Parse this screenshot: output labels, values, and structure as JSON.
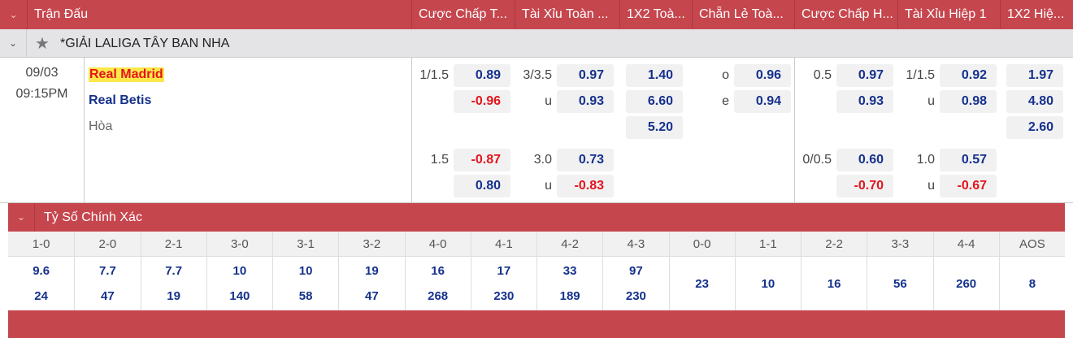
{
  "header": {
    "columns": [
      "Trận Đấu",
      "Cược Chấp T...",
      "Tài Xỉu Toàn ...",
      "1X2 Toà...",
      "Chẵn Lẻ Toà...",
      "Cược Chấp H...",
      "Tài Xỉu Hiệp 1",
      "1X2 Hiệ..."
    ]
  },
  "league": {
    "name": "*GIẢI LALIGA TÂY BAN NHA",
    "icon": "star-icon"
  },
  "match": {
    "date": "09/03",
    "time": "09:15PM",
    "home": "Real Madrid",
    "away": "Real Betis",
    "draw": "Hòa"
  },
  "odds": [
    {
      "col": "handicap_ft",
      "label": "1/1.5",
      "value": "0.89",
      "row": 0
    },
    {
      "col": "handicap_ft",
      "label": "",
      "value": "-0.96",
      "row": 1
    },
    {
      "col": "handicap_ft",
      "label": "1.5",
      "value": "-0.87",
      "row": 3
    },
    {
      "col": "handicap_ft",
      "label": "",
      "value": "0.80",
      "row": 4
    },
    {
      "col": "ou_ft",
      "label": "3/3.5",
      "value": "0.97",
      "row": 0
    },
    {
      "col": "ou_ft",
      "label": "u",
      "value": "0.93",
      "row": 1
    },
    {
      "col": "ou_ft",
      "label": "3.0",
      "value": "0.73",
      "row": 3
    },
    {
      "col": "ou_ft",
      "label": "u",
      "value": "-0.83",
      "row": 4
    },
    {
      "col": "1x2_ft",
      "label": "",
      "value": "1.40",
      "row": 0
    },
    {
      "col": "1x2_ft",
      "label": "",
      "value": "6.60",
      "row": 1
    },
    {
      "col": "1x2_ft",
      "label": "",
      "value": "5.20",
      "row": 2
    },
    {
      "col": "oe_ft",
      "label": "o",
      "value": "0.96",
      "row": 0
    },
    {
      "col": "oe_ft",
      "label": "e",
      "value": "0.94",
      "row": 1
    },
    {
      "col": "handicap_h1",
      "label": "0.5",
      "value": "0.97",
      "row": 0
    },
    {
      "col": "handicap_h1",
      "label": "",
      "value": "0.93",
      "row": 1
    },
    {
      "col": "handicap_h1",
      "label": "0/0.5",
      "value": "0.60",
      "row": 3
    },
    {
      "col": "handicap_h1",
      "label": "",
      "value": "-0.70",
      "row": 4
    },
    {
      "col": "ou_h1",
      "label": "1/1.5",
      "value": "0.92",
      "row": 0
    },
    {
      "col": "ou_h1",
      "label": "u",
      "value": "0.98",
      "row": 1
    },
    {
      "col": "ou_h1",
      "label": "1.0",
      "value": "0.57",
      "row": 3
    },
    {
      "col": "ou_h1",
      "label": "u",
      "value": "-0.67",
      "row": 4
    },
    {
      "col": "1x2_h1",
      "label": "",
      "value": "1.97",
      "row": 0
    },
    {
      "col": "1x2_h1",
      "label": "",
      "value": "4.80",
      "row": 1
    },
    {
      "col": "1x2_h1",
      "label": "",
      "value": "2.60",
      "row": 2
    }
  ],
  "correct_score": {
    "title": "Tỷ Số Chính Xác",
    "columns": [
      {
        "score": "1-0",
        "values": [
          "9.6",
          "24"
        ]
      },
      {
        "score": "2-0",
        "values": [
          "7.7",
          "47"
        ]
      },
      {
        "score": "2-1",
        "values": [
          "7.7",
          "19"
        ]
      },
      {
        "score": "3-0",
        "values": [
          "10",
          "140"
        ]
      },
      {
        "score": "3-1",
        "values": [
          "10",
          "58"
        ]
      },
      {
        "score": "3-2",
        "values": [
          "19",
          "47"
        ]
      },
      {
        "score": "4-0",
        "values": [
          "16",
          "268"
        ]
      },
      {
        "score": "4-1",
        "values": [
          "17",
          "230"
        ]
      },
      {
        "score": "4-2",
        "values": [
          "33",
          "189"
        ]
      },
      {
        "score": "4-3",
        "values": [
          "97",
          "230"
        ]
      },
      {
        "score": "0-0",
        "values": [
          "23"
        ]
      },
      {
        "score": "1-1",
        "values": [
          "10"
        ]
      },
      {
        "score": "2-2",
        "values": [
          "16"
        ]
      },
      {
        "score": "3-3",
        "values": [
          "56"
        ]
      },
      {
        "score": "4-4",
        "values": [
          "260"
        ]
      },
      {
        "score": "AOS",
        "values": [
          "8"
        ]
      }
    ]
  },
  "colors": {
    "header": "#c6464e",
    "positive": "#15318c",
    "negative": "#e4141b",
    "highlight": "#fde84a"
  }
}
